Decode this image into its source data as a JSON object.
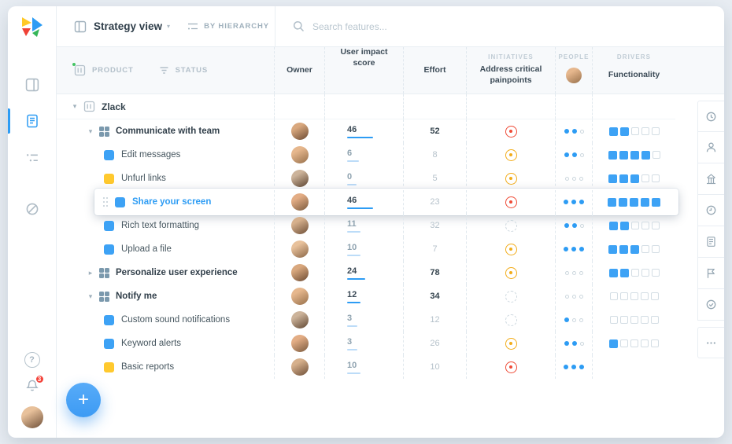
{
  "header": {
    "view_title": "Strategy view",
    "by_hierarchy": "BY HIERARCHY",
    "search_placeholder": "Search features..."
  },
  "columns": {
    "product": "PRODUCT",
    "status": "STATUS",
    "owner": "Owner",
    "user_impact": "User impact score",
    "effort": "Effort",
    "initiatives_group": "INITIATIVES",
    "initiatives": "Address critical painpoints",
    "people_group": "PEOPLE",
    "drivers_group": "DRIVERS",
    "drivers": "Functionality"
  },
  "rows": [
    {
      "label": "Zlack",
      "type": "root",
      "caret": "down"
    },
    {
      "label": "Communicate with team",
      "type": "group",
      "caret": "down",
      "impact": 46,
      "effort": 52,
      "initiative": "red",
      "people": 2,
      "drivers_filled": 2,
      "drivers_total": 5
    },
    {
      "label": "Edit messages",
      "type": "feature",
      "bullet": "blue",
      "impact": 6,
      "effort": 8,
      "initiative": "yellow",
      "people": 2,
      "drivers_filled": 4,
      "drivers_total": 5
    },
    {
      "label": "Unfurl links",
      "type": "feature",
      "bullet": "yellow",
      "impact": 0,
      "effort": 5,
      "initiative": "yellow",
      "people": 0,
      "drivers_filled": 3,
      "drivers_total": 5
    },
    {
      "label": "Share your screen",
      "type": "feature",
      "bullet": "blue",
      "active": true,
      "impact": 46,
      "effort": 23,
      "initiative": "red",
      "people": 3,
      "drivers_filled": 5,
      "drivers_total": 5
    },
    {
      "label": "Rich text formatting",
      "type": "feature",
      "bullet": "blue",
      "impact": 11,
      "effort": 32,
      "initiative": "none",
      "people": 2,
      "drivers_filled": 2,
      "drivers_total": 5
    },
    {
      "label": "Upload a file",
      "type": "feature",
      "bullet": "blue",
      "impact": 10,
      "effort": 7,
      "initiative": "yellow",
      "people": 3,
      "drivers_filled": 3,
      "drivers_total": 5
    },
    {
      "label": "Personalize user experience",
      "type": "group",
      "caret": "right",
      "impact": 24,
      "effort": 78,
      "initiative": "yellow",
      "people": 0,
      "drivers_filled": 2,
      "drivers_total": 5
    },
    {
      "label": "Notify me",
      "type": "group",
      "caret": "down",
      "impact": 12,
      "effort": 34,
      "initiative": "none",
      "people": 0,
      "drivers_filled": 0,
      "drivers_total": 5
    },
    {
      "label": "Custom sound notifications",
      "type": "feature",
      "bullet": "blue",
      "impact": 3,
      "effort": 12,
      "initiative": "none",
      "people": 1,
      "drivers_filled": 0,
      "drivers_total": 5
    },
    {
      "label": "Keyword alerts",
      "type": "feature",
      "bullet": "blue",
      "impact": 3,
      "effort": 26,
      "initiative": "yellow",
      "people": 2,
      "drivers_filled": 1,
      "drivers_total": 5
    },
    {
      "label": "Basic reports",
      "type": "feature",
      "bullet": "yellow",
      "impact": 10,
      "effort": 10,
      "initiative": "red",
      "people": 3,
      "drivers_filled": 0,
      "drivers_total": 0
    }
  ],
  "fab": {
    "label": "+"
  },
  "sidebar": {
    "notification_count": "3",
    "help_label": "?"
  },
  "colors": {
    "accent": "#2d9cf4",
    "yellow": "#ffc92e",
    "red": "#ef4a36",
    "empty_outline": "#ccd7de",
    "header_bg": "#f7f9fb"
  }
}
